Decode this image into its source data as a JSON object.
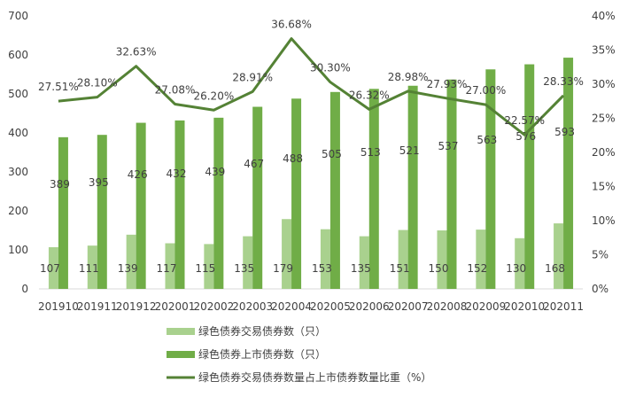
{
  "chart_data": {
    "type": "bar",
    "categories": [
      "201910",
      "201911",
      "201912",
      "202001",
      "202002",
      "202003",
      "202004",
      "202005",
      "202006",
      "202007",
      "202008",
      "202009",
      "202010",
      "202011"
    ],
    "series": [
      {
        "name": "绿色债券交易债券数（只）",
        "type": "bar",
        "axis": "left",
        "color": "#a9d18e",
        "values": [
          107,
          111,
          139,
          117,
          115,
          135,
          179,
          153,
          135,
          151,
          150,
          152,
          130,
          168
        ]
      },
      {
        "name": "绿色债券上市债券数（只）",
        "type": "bar",
        "axis": "left",
        "color": "#70ad47",
        "values": [
          389,
          395,
          426,
          432,
          439,
          467,
          488,
          505,
          513,
          521,
          537,
          563,
          576,
          593
        ]
      },
      {
        "name": "绿色债券交易债券数量占上市债券数量比重（%）",
        "type": "line",
        "axis": "right",
        "color": "#548235",
        "values": [
          27.51,
          28.1,
          32.63,
          27.08,
          26.2,
          28.91,
          36.68,
          30.3,
          26.32,
          28.98,
          27.93,
          27.0,
          22.57,
          28.33
        ],
        "labels": [
          "27.51%",
          "28.10%",
          "32.63%",
          "27.08%",
          "26.20%",
          "28.91%",
          "36.68%",
          "30.30%",
          "26.32%",
          "28.98%",
          "27.93%",
          "27.00%",
          "22.57%",
          "28.33%"
        ]
      }
    ],
    "y_left": {
      "min": 0,
      "max": 700,
      "ticks": [
        "0",
        "100",
        "200",
        "300",
        "400",
        "500",
        "600",
        "700"
      ]
    },
    "y_right": {
      "min": 0,
      "max": 40,
      "ticks": [
        "0%",
        "5%",
        "10%",
        "15%",
        "20%",
        "25%",
        "30%",
        "35%",
        "40%"
      ]
    },
    "grid": false,
    "legend_position": "bottom"
  }
}
